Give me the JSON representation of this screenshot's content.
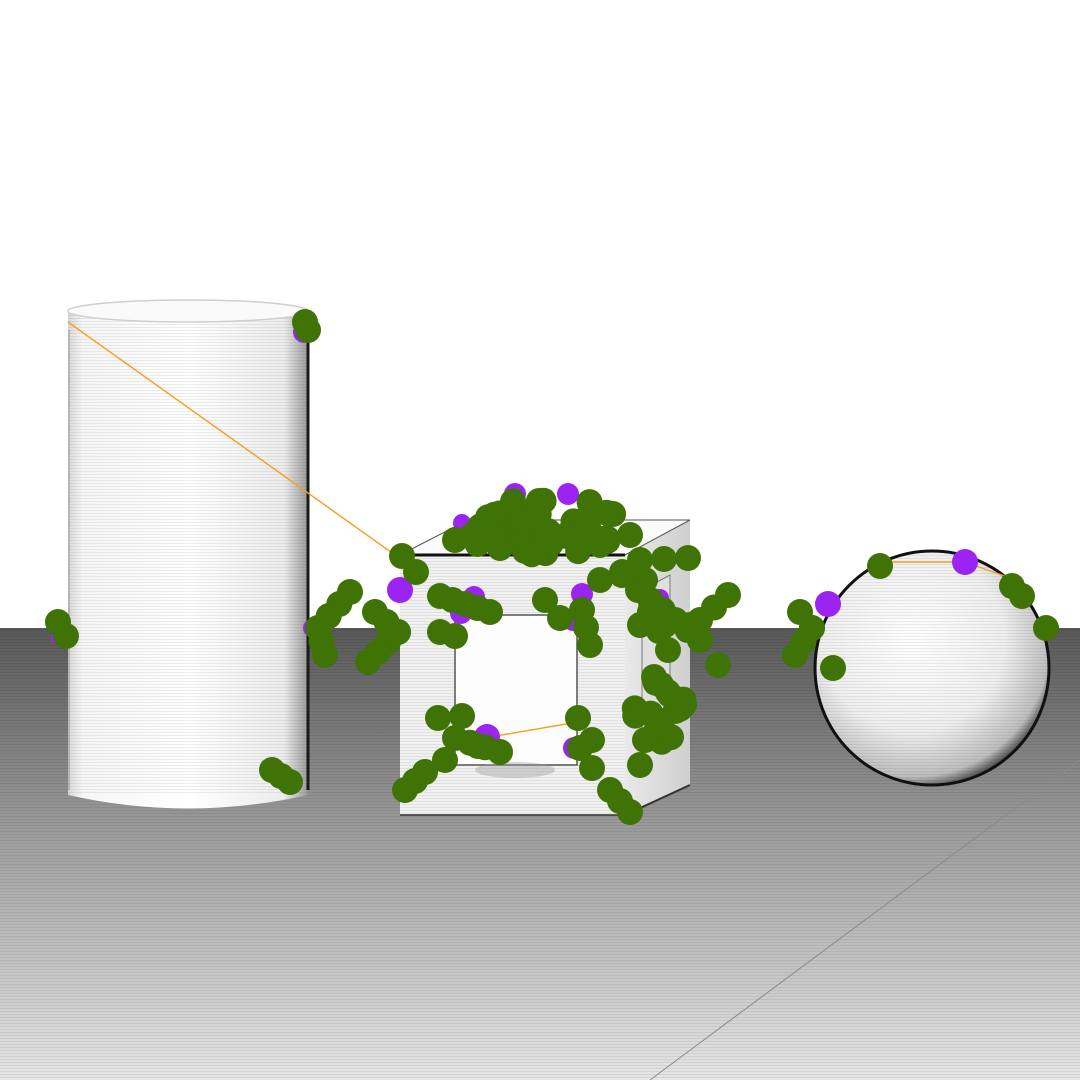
{
  "scene": {
    "objects": [
      "cylinder",
      "hollow-cube",
      "sphere"
    ],
    "background_color": "#ffffff",
    "floor_color_far": "#5a5a5a",
    "floor_color_near": "#e4e4e4"
  },
  "overlay": {
    "green_marker_color": "#3f7306",
    "purple_marker_color": "#9b24f2",
    "connector_color": "#f4a020",
    "green_marker_count": 170,
    "purple_marker_count": 17,
    "connector_count": 4
  }
}
